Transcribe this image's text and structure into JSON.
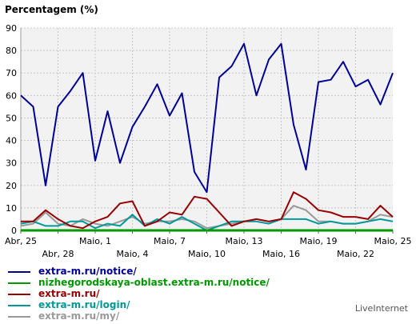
{
  "chart_data": {
    "type": "line",
    "title": "Percentagem (%)",
    "ylim": [
      0,
      90
    ],
    "yticks": [
      0,
      10,
      20,
      30,
      40,
      50,
      60,
      70,
      80,
      90
    ],
    "grid": true,
    "x": [
      "Abr, 25",
      "Abr, 26",
      "Abr, 27",
      "Abr, 28",
      "Abr, 29",
      "Abr, 30",
      "Maio, 1",
      "Maio, 2",
      "Maio, 3",
      "Maio, 4",
      "Maio, 5",
      "Maio, 6",
      "Maio, 7",
      "Maio, 8",
      "Maio, 9",
      "Maio, 10",
      "Maio, 11",
      "Maio, 12",
      "Maio, 13",
      "Maio, 14",
      "Maio, 15",
      "Maio, 16",
      "Maio, 17",
      "Maio, 18",
      "Maio, 19",
      "Maio, 20",
      "Maio, 21",
      "Maio, 22",
      "Maio, 23",
      "Maio, 24",
      "Maio, 25"
    ],
    "xlabels_row1": [
      {
        "index": 0,
        "label": "Abr, 25"
      },
      {
        "index": 6,
        "label": "Maio, 1"
      },
      {
        "index": 12,
        "label": "Maio, 7"
      },
      {
        "index": 18,
        "label": "Maio, 13"
      },
      {
        "index": 24,
        "label": "Maio, 19"
      },
      {
        "index": 30,
        "label": "Maio, 25"
      }
    ],
    "xlabels_row2": [
      {
        "index": 3,
        "label": "Abr, 28"
      },
      {
        "index": 9,
        "label": "Maio, 4"
      },
      {
        "index": 15,
        "label": "Maio, 10"
      },
      {
        "index": 21,
        "label": "Maio, 16"
      },
      {
        "index": 27,
        "label": "Maio, 22"
      }
    ],
    "series": [
      {
        "name": "extra-m.ru/notice/",
        "color": "#000099",
        "values": [
          60,
          55,
          20,
          55,
          62,
          70,
          31,
          53,
          30,
          46,
          55,
          65,
          51,
          61,
          26,
          17,
          68,
          73,
          83,
          60,
          76,
          83,
          47,
          27,
          66,
          67,
          75,
          64,
          67,
          56,
          70
        ]
      },
      {
        "name": "nizhegorodskaya-oblast.extra-m.ru/notice/",
        "color": "#009900",
        "values": [
          0,
          0,
          0,
          0,
          0,
          0,
          0,
          0,
          0,
          0,
          0,
          0,
          0,
          0,
          0,
          0,
          0,
          0,
          0,
          0,
          0,
          0,
          0,
          0,
          0,
          0,
          0,
          0,
          0,
          0,
          0
        ]
      },
      {
        "name": "extra-m.ru/",
        "color": "#990000",
        "values": [
          4,
          4,
          9,
          5,
          2,
          1,
          4,
          6,
          12,
          13,
          2,
          4,
          8,
          7,
          15,
          14,
          8,
          2,
          4,
          5,
          4,
          5,
          17,
          14,
          9,
          8,
          6,
          6,
          5,
          11,
          6
        ]
      },
      {
        "name": "extra-m.ru/login/",
        "color": "#009999",
        "values": [
          3,
          4,
          2,
          2,
          4,
          4,
          1,
          3,
          2,
          7,
          2,
          5,
          3,
          6,
          3,
          0,
          2,
          4,
          4,
          4,
          3,
          5,
          5,
          5,
          3,
          4,
          3,
          3,
          4,
          5,
          4
        ]
      },
      {
        "name": "extra-m.ru/my/",
        "color": "#999999",
        "values": [
          2,
          3,
          8,
          3,
          2,
          5,
          3,
          2,
          4,
          6,
          3,
          4,
          4,
          5,
          4,
          1,
          2,
          3,
          4,
          5,
          4,
          5,
          11,
          9,
          4,
          4,
          3,
          3,
          4,
          7,
          6
        ]
      }
    ]
  },
  "legend": [
    {
      "label": "extra-m.ru/notice/",
      "color": "#000099"
    },
    {
      "label": "nizhegorodskaya-oblast.extra-m.ru/notice/",
      "color": "#009900"
    },
    {
      "label": "extra-m.ru/",
      "color": "#990000"
    },
    {
      "label": "extra-m.ru/login/",
      "color": "#009999"
    },
    {
      "label": "extra-m.ru/my/",
      "color": "#999999"
    }
  ],
  "brand": "LiveInternet"
}
